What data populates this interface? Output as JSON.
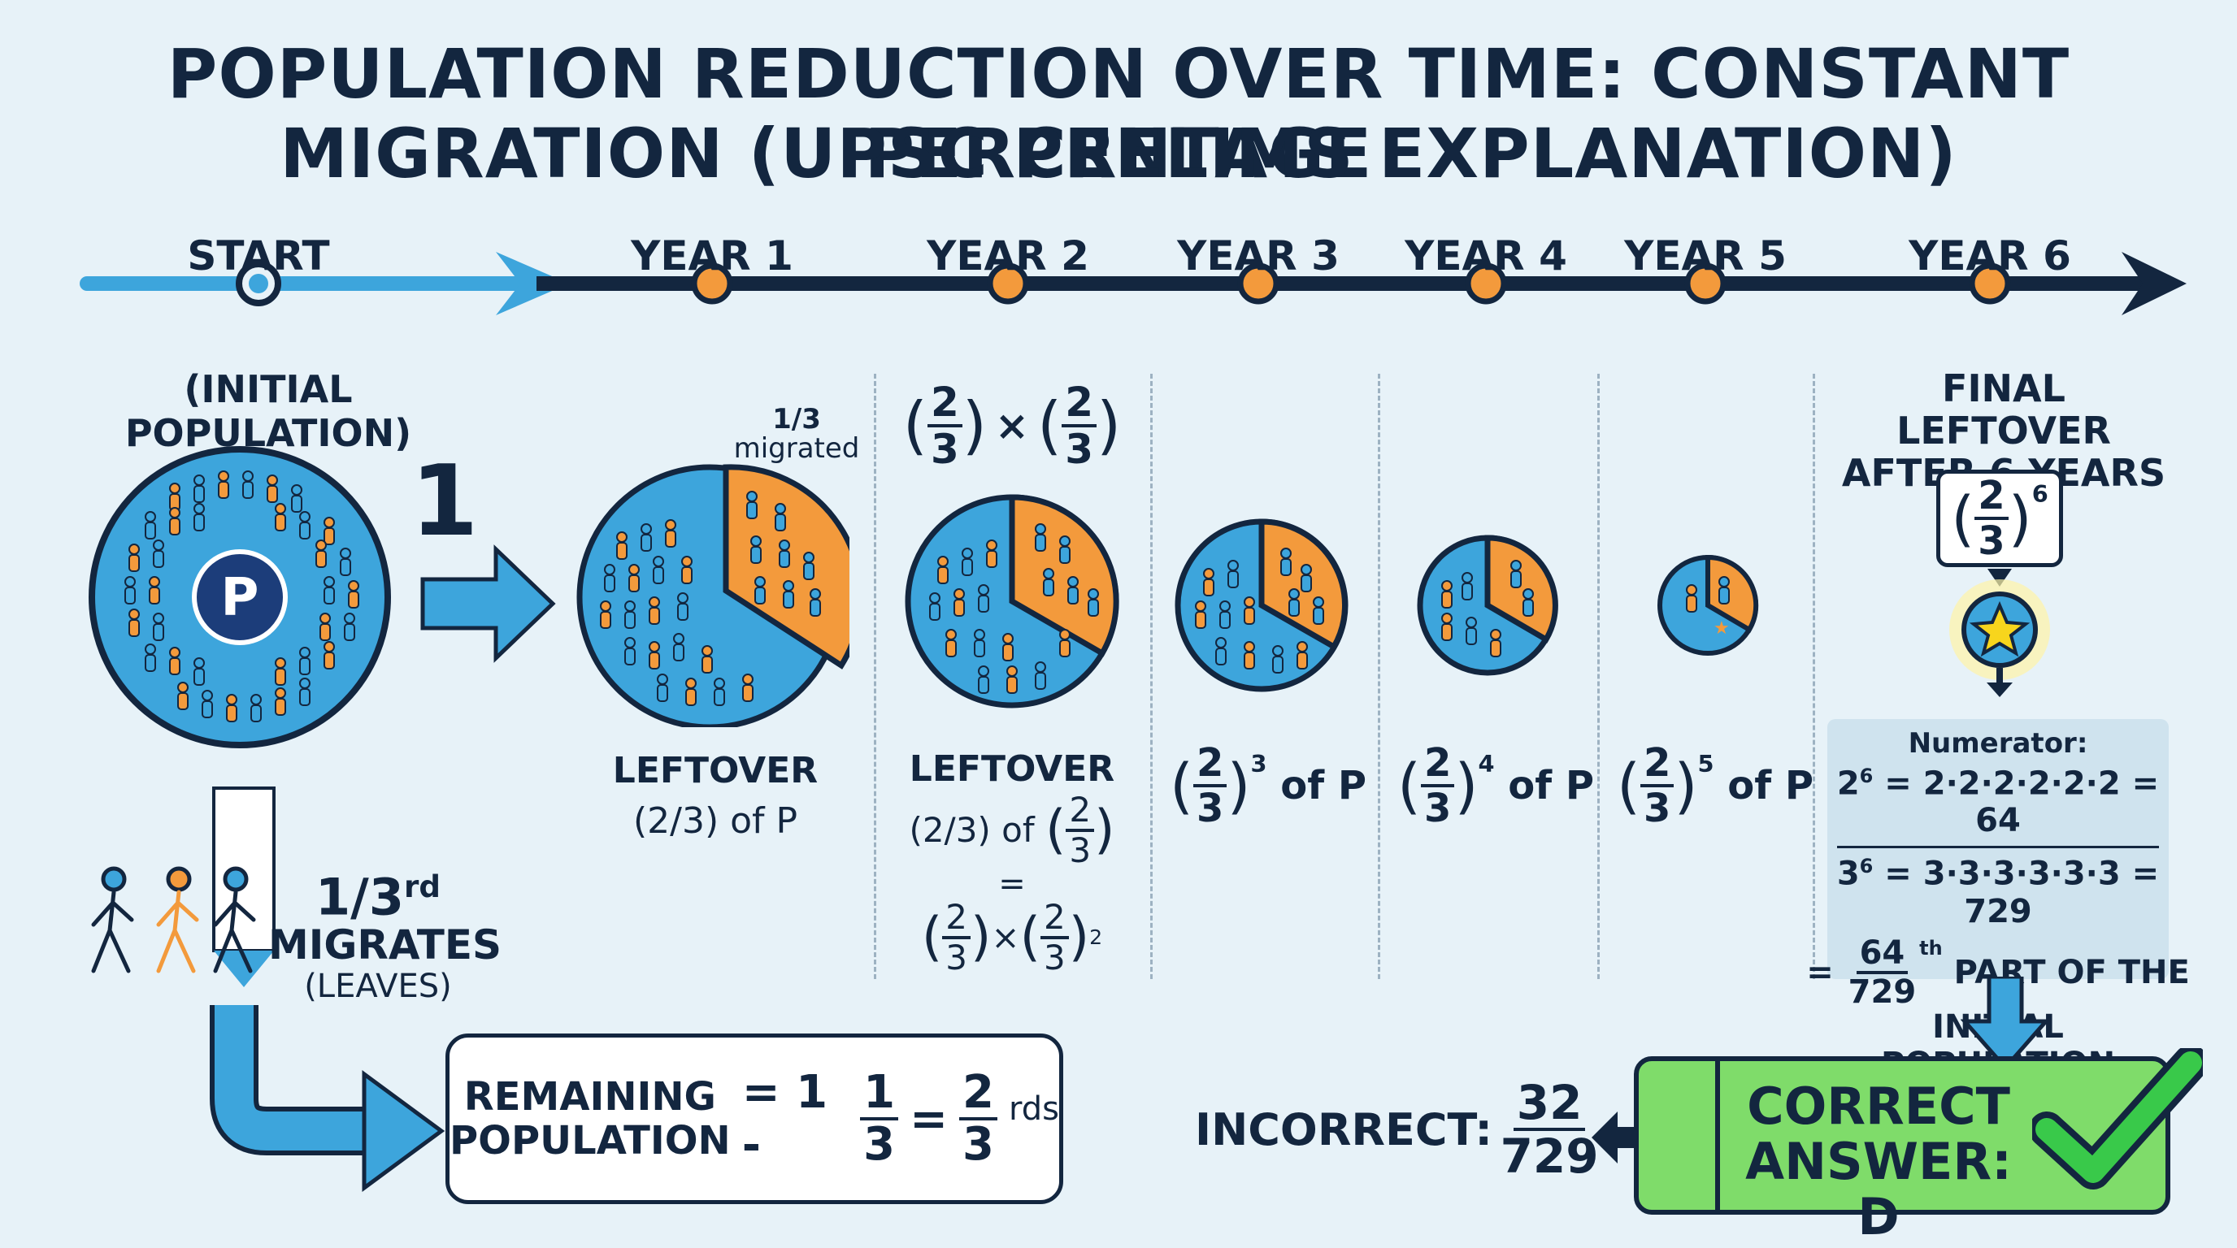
{
  "title_line1": "POPULATION REDUCTION OVER TIME: CONSTANT PERCENTAGE",
  "title_line2": "MIGRATION (UPSC PRELIMS EXPLANATION)",
  "timeline": {
    "labels": [
      "START",
      "YEAR 1",
      "YEAR 2",
      "YEAR 3",
      "YEAR 4",
      "YEAR 5",
      "YEAR 6"
    ]
  },
  "start": {
    "caption": "(INITIAL POPULATION)",
    "circle_letter": "P",
    "one_label": "1"
  },
  "year1": {
    "migrated_num": "1/3",
    "migrated_text": "migrated",
    "caption_line1": "LEFTOVER",
    "caption_line2": "(2/3) of P"
  },
  "year2": {
    "top_expr_n": "2",
    "top_expr_d": "3",
    "times": "×",
    "caption_line1": "LEFTOVER",
    "caption_line2_prefix": "(2/3) of",
    "equals": "=",
    "square": "2"
  },
  "year3": {
    "power": "3",
    "suffix": "of P"
  },
  "year4": {
    "power": "4",
    "suffix": "of P"
  },
  "year5": {
    "power": "5",
    "suffix": "of P"
  },
  "year6": {
    "caption_line1": "FINAL LEFTOVER",
    "caption_line2": "AFTER 6 YEARS",
    "power": "6",
    "numerator_label": "Numerator:",
    "num_line_base": "2",
    "num_line_exp": "6",
    "num_line_rest": " = 2·2·2·2·2·2 = 64",
    "den_line_base": "3",
    "den_line_exp": "6",
    "den_line_rest": " = 3·3·3·3·3·3 = 729",
    "result_n": "64",
    "result_d": "729",
    "result_suffix": "th",
    "result_text1": "PART OF THE",
    "result_text2": "INITIAL POPULATION"
  },
  "migrates": {
    "frac": "1/3",
    "frac_suffix": "rd",
    "line2": "MIGRATES",
    "line3": "(LEAVES)"
  },
  "remaining": {
    "label_line1": "REMAINING",
    "label_line2": "POPULATION",
    "eq1": "= 1 -",
    "n1": "1",
    "d1": "3",
    "eq2": "=",
    "n2": "2",
    "d2": "3",
    "suffix": "rds"
  },
  "incorrect": {
    "label": "INCORRECT:",
    "n": "32",
    "d": "729"
  },
  "correct": {
    "line1": "CORRECT",
    "line2": "ANSWER: D"
  },
  "colors": {
    "navy": "#13263f",
    "blue": "#3da5dc",
    "orange": "#f39a3c",
    "green": "#7fdc6a",
    "bg": "#e7f2f8"
  }
}
